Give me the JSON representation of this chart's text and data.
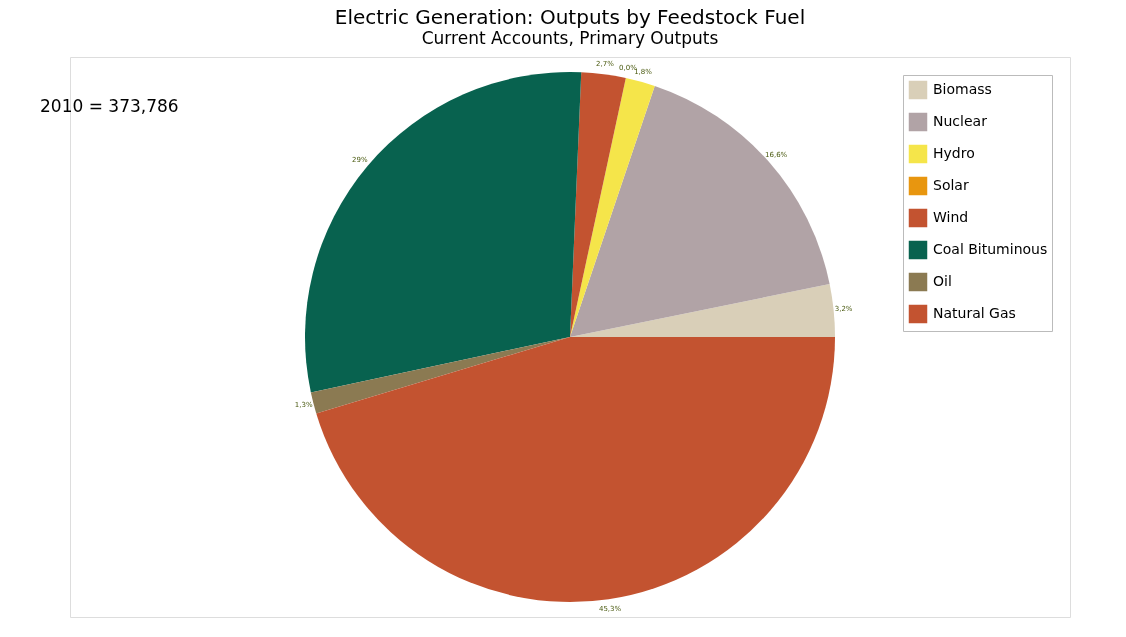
{
  "chart_data": {
    "type": "pie",
    "title": "Electric Generation: Outputs by Feedstock Fuel",
    "subtitle": "Current Accounts, Primary Outputs",
    "annotations": [
      "2010 = 373,786"
    ],
    "categories": [
      "Biomass",
      "Nuclear",
      "Hydro",
      "Solar",
      "Wind",
      "Coal Bituminous",
      "Oil",
      "Natural Gas"
    ],
    "values": [
      3.2,
      16.6,
      1.8,
      0.0,
      2.7,
      29,
      1.3,
      45.3
    ],
    "value_labels": [
      "3,2%",
      "16,6%",
      "1,8%",
      "0,0%",
      "2,7%",
      "29%",
      "1,3%",
      "45,3%"
    ],
    "colors": [
      "#d9cfb8",
      "#b1a3a6",
      "#f5e54a",
      "#e8960f",
      "#c35330",
      "#08624f",
      "#8b7a52",
      "#c35330"
    ],
    "legend": "top right"
  }
}
